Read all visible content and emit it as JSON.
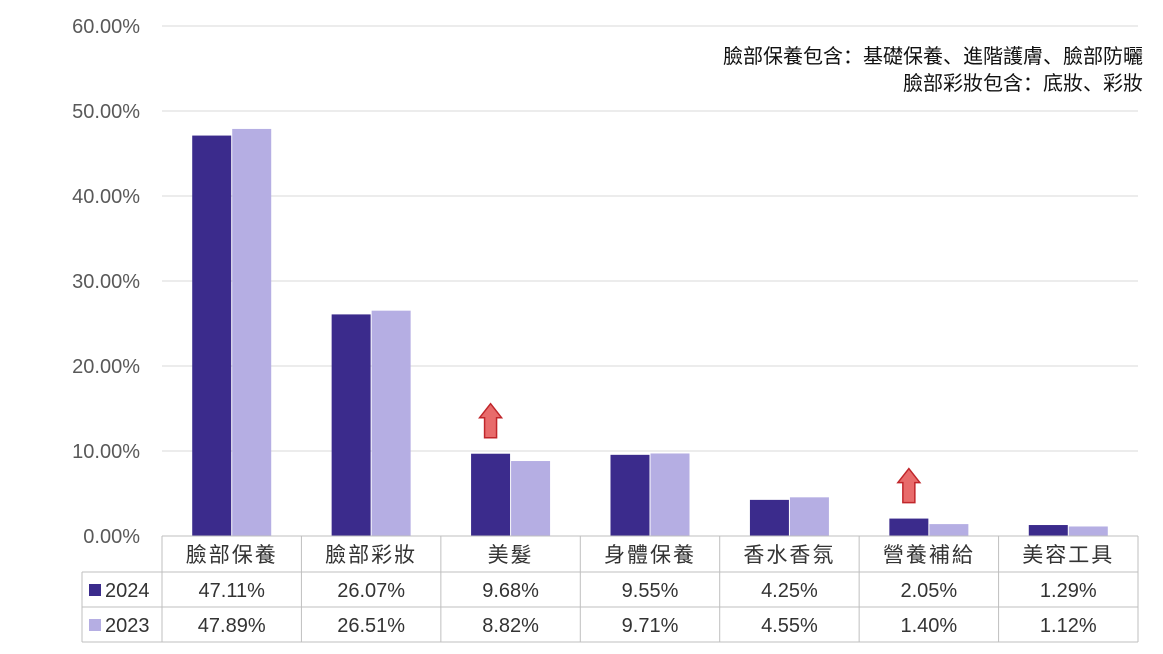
{
  "notes": [
    "臉部保養包含：基礎保養、進階護膚、臉部防曬",
    "臉部彩妝包含：底妝、彩妝"
  ],
  "colors": {
    "series_2024": "#3b2b8c",
    "series_2023": "#b5aee3",
    "arrow_fill": "#e86b6b",
    "arrow_stroke": "#c0262b",
    "grid": "#d9d9d9"
  },
  "chart_data": {
    "type": "bar",
    "title": "",
    "xlabel": "",
    "ylabel": "",
    "ylim": [
      0,
      60
    ],
    "y_ticks": [
      "0.00%",
      "10.00%",
      "20.00%",
      "30.00%",
      "40.00%",
      "50.00%",
      "60.00%"
    ],
    "grid": true,
    "legend": "data-table",
    "categories": [
      "臉部保養",
      "臉部彩妝",
      "美髮",
      "身體保養",
      "香水香氛",
      "營養補給",
      "美容工具"
    ],
    "series": [
      {
        "name": "2024",
        "values": [
          47.11,
          26.07,
          9.68,
          9.55,
          4.25,
          2.05,
          1.29
        ],
        "labels": [
          "47.11%",
          "26.07%",
          "9.68%",
          "9.55%",
          "4.25%",
          "2.05%",
          "1.29%"
        ]
      },
      {
        "name": "2023",
        "values": [
          47.89,
          26.51,
          8.82,
          9.71,
          4.55,
          1.4,
          1.12
        ],
        "labels": [
          "47.89%",
          "26.51%",
          "8.82%",
          "9.71%",
          "4.55%",
          "1.40%",
          "1.12%"
        ]
      }
    ],
    "annotations": [
      {
        "type": "up-arrow",
        "category": "美髮"
      },
      {
        "type": "up-arrow",
        "category": "營養補給"
      }
    ]
  }
}
